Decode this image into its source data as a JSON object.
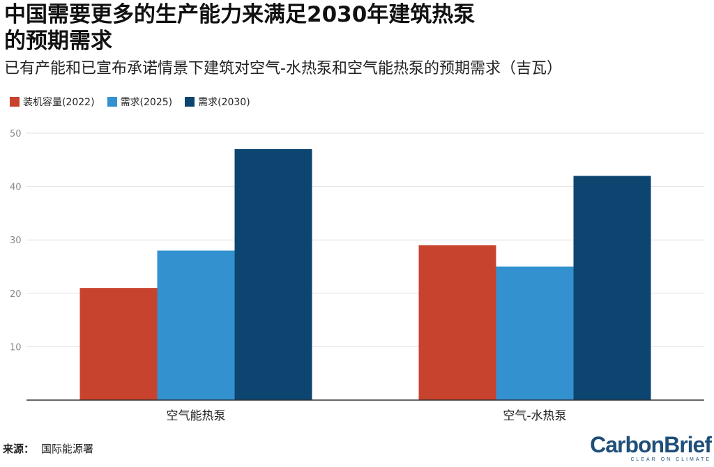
{
  "title": "中国需要更多的生产能力来满足2030年建筑热泵的预期需求",
  "subtitle": "已有产能和已宣布承诺情景下建筑对空气-水热泵和空气能热泵的预期需求（吉瓦）",
  "source_label": "来源：",
  "source_text": "国际能源署",
  "logo": {
    "main": "CarbonBrief",
    "tagline": "CLEAR ON CLIMATE"
  },
  "chart_data": {
    "type": "bar",
    "title": "中国需要更多的生产能力来满足2030年建筑热泵的预期需求",
    "subtitle": "已有产能和已宣布承诺情景下建筑对空气-水热泵和空气能热泵的预期需求（吉瓦）",
    "categories": [
      "空气能热泵",
      "空气-水热泵"
    ],
    "series": [
      {
        "name": "装机容量(2022)",
        "color": "#c8432d",
        "values": [
          21,
          29
        ]
      },
      {
        "name": "需求(2025)",
        "color": "#3391d0",
        "values": [
          28,
          25
        ]
      },
      {
        "name": "需求(2030)",
        "color": "#0c4570",
        "values": [
          47,
          42
        ]
      }
    ],
    "yticks": [
      10,
      20,
      30,
      40,
      50
    ],
    "ylim": [
      0,
      50
    ],
    "xlabel": "",
    "ylabel": "",
    "grid": true,
    "legend": "top-left"
  }
}
